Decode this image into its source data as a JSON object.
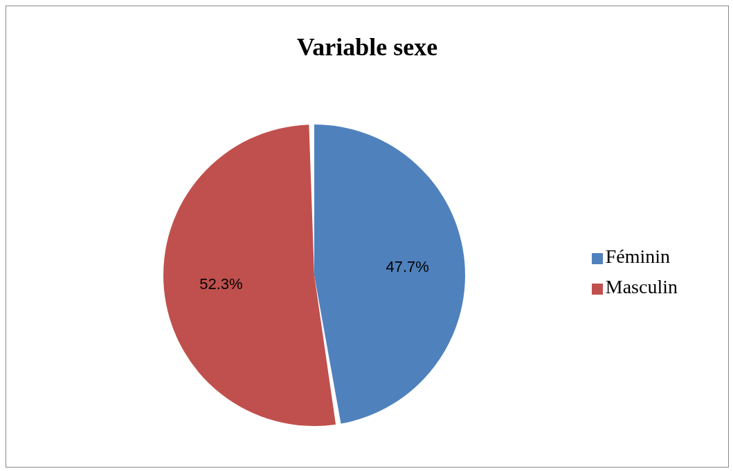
{
  "chart_data": {
    "type": "pie",
    "title": "Variable sexe",
    "categories": [
      "Féminin",
      "Masculin"
    ],
    "values": [
      47.7,
      52.3
    ],
    "value_labels": [
      "47.7%",
      "52.3%"
    ],
    "colors": [
      "#4f81bd",
      "#c0504d"
    ],
    "legend": "right"
  }
}
